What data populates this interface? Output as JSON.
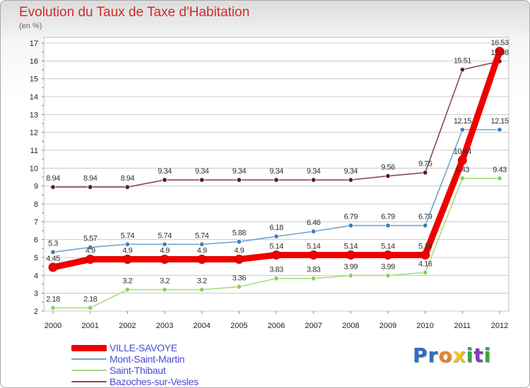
{
  "colors": {
    "title": "#d42a2a",
    "grid": "#c8c8c8",
    "legend_text": "#4b4bd6",
    "axis_text": "#222222"
  },
  "chart_data": {
    "type": "line",
    "title": "Evolution du Taux de Taxe d'Habitation",
    "subtitle": "(en %)",
    "x": [
      "2000",
      "2001",
      "2002",
      "2003",
      "2004",
      "2005",
      "2006",
      "2007",
      "2008",
      "2009",
      "2010",
      "2011",
      "2012"
    ],
    "y_ticks": [
      "2",
      "3",
      "4",
      "5",
      "6",
      "7",
      "8",
      "9",
      "10",
      "11",
      "12",
      "13",
      "14",
      "15",
      "16",
      "17"
    ],
    "ylim": [
      2,
      17
    ],
    "grid": true,
    "legend_position": "bottom-left",
    "series": [
      {
        "name": "VILLE-SAVOYE",
        "color": "#ee0000",
        "emphasis": true,
        "values": [
          4.45,
          4.9,
          4.9,
          4.9,
          4.9,
          4.9,
          5.14,
          5.14,
          5.14,
          5.14,
          5.14,
          10.44,
          16.53
        ],
        "labels": [
          "4.45",
          "4.9",
          "4.9",
          "4.9",
          "4.9",
          "4.9",
          "5.14",
          "5.14",
          "5.14",
          "5.14",
          "5.14",
          "10.44",
          "16.53"
        ]
      },
      {
        "name": "Mont-Saint-Martin",
        "color": "#6fa3d0",
        "marker": "#3d7fbf",
        "values": [
          5.3,
          5.57,
          5.74,
          5.74,
          5.74,
          5.88,
          6.18,
          6.46,
          6.79,
          6.79,
          6.79,
          12.15,
          12.15
        ],
        "labels": [
          "5.3",
          "5.57",
          "5.74",
          "5.74",
          "5.74",
          "5.88",
          "6.18",
          "6.46",
          "6.79",
          "6.79",
          "6.79",
          "12.15",
          "12.15"
        ]
      },
      {
        "name": "Saint-Thibaut",
        "color": "#a8dc80",
        "marker": "#8ccf5a",
        "values": [
          2.18,
          2.18,
          3.2,
          3.2,
          3.2,
          3.36,
          3.83,
          3.83,
          3.99,
          3.99,
          4.16,
          9.43,
          9.43
        ],
        "labels": [
          "2.18",
          "2.18",
          "3.2",
          "3.2",
          "3.2",
          "3.36",
          "3.83",
          "3.83",
          "3.99",
          "3.99",
          "4.16",
          "9.43",
          "9.43"
        ]
      },
      {
        "name": "Bazoches-sur-Vesles",
        "color": "#8e4a4a",
        "marker": "#5a2020",
        "values": [
          8.94,
          8.94,
          8.94,
          9.34,
          9.34,
          9.34,
          9.34,
          9.34,
          9.34,
          9.56,
          9.75,
          15.51,
          15.98
        ],
        "labels": [
          "8.94",
          "8.94",
          "8.94",
          "9.34",
          "9.34",
          "9.34",
          "9.34",
          "9.34",
          "9.34",
          "9.56",
          "9.75",
          "15.51",
          "15.98"
        ]
      }
    ]
  },
  "legend": [
    {
      "label": "VILLE-SAVOYE",
      "color": "#ee0000"
    },
    {
      "label": "Mont-Saint-Martin",
      "color": "#6fa3d0"
    },
    {
      "label": "Saint-Thibaut",
      "color": "#a8dc80"
    },
    {
      "label": "Bazoches-sur-Vesles",
      "color": "#8e4a4a"
    }
  ],
  "brand": {
    "letters": [
      "P",
      "r",
      "o",
      "x",
      "i",
      "t",
      "i"
    ],
    "colors": [
      "#2e6fc4",
      "#2e6fc4",
      "#e8812a",
      "#f2c21a",
      "#3aa53a",
      "#7a3fb0",
      "#3aa53a"
    ]
  }
}
